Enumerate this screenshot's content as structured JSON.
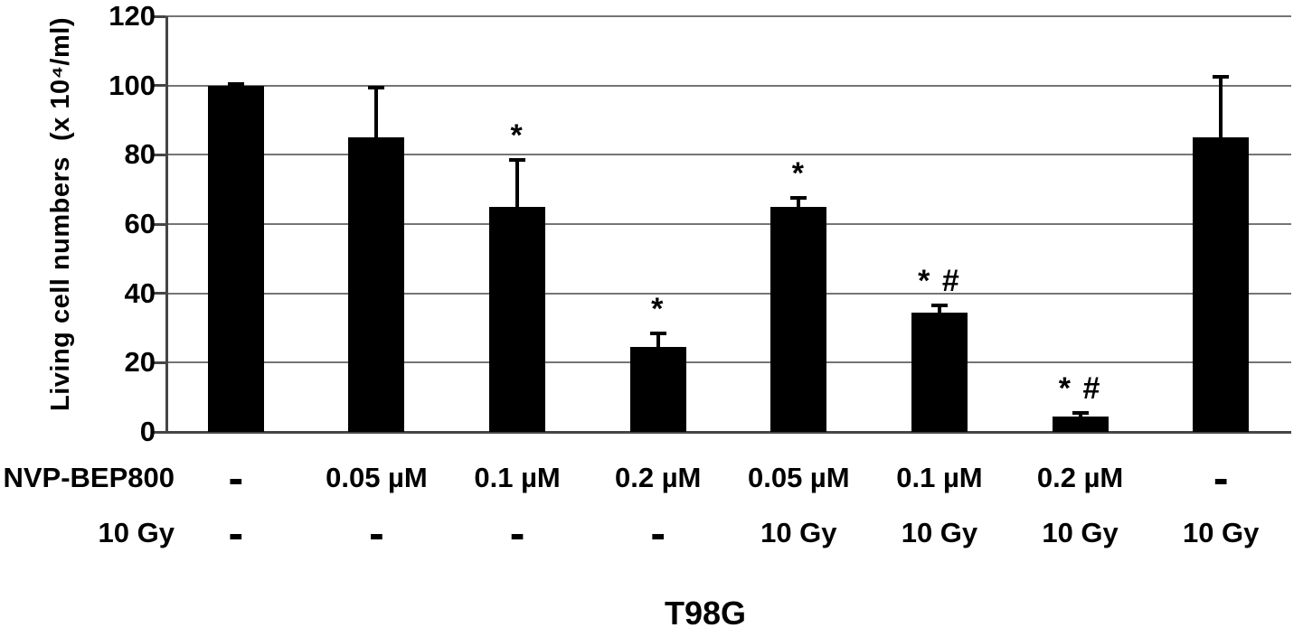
{
  "chart_data": {
    "type": "bar",
    "title": "T98G",
    "ylabel": "Living cell numbers  (x 10⁴/ml)",
    "ylim": [
      0,
      120
    ],
    "yticks": [
      0,
      20,
      40,
      60,
      80,
      100,
      120
    ],
    "grid": true,
    "legend_position": "none",
    "bar_color": "#000000",
    "gridline_color": "#757575",
    "axis_color": "#454545",
    "x_label_rows": [
      {
        "label": "NVP-BEP800",
        "values": [
          "-",
          "0.05 µM",
          "0.1 µM",
          "0.2 µM",
          "0.05 µM",
          "0.1 µM",
          "0.2 µM",
          "-"
        ]
      },
      {
        "label": "10 Gy",
        "values": [
          "-",
          "-",
          "-",
          "-",
          "10 Gy",
          "10 Gy",
          "10 Gy",
          "10 Gy"
        ]
      }
    ],
    "series": [
      {
        "name": "Living cell numbers",
        "values": [
          100,
          85,
          65,
          24.5,
          65,
          34.5,
          4.5,
          85
        ],
        "errors_plus": [
          1,
          15,
          14,
          4.5,
          3,
          2.5,
          1.5,
          18
        ],
        "annotations": [
          "",
          "",
          "*",
          "*",
          "*",
          "* #",
          "* #",
          ""
        ]
      }
    ]
  }
}
